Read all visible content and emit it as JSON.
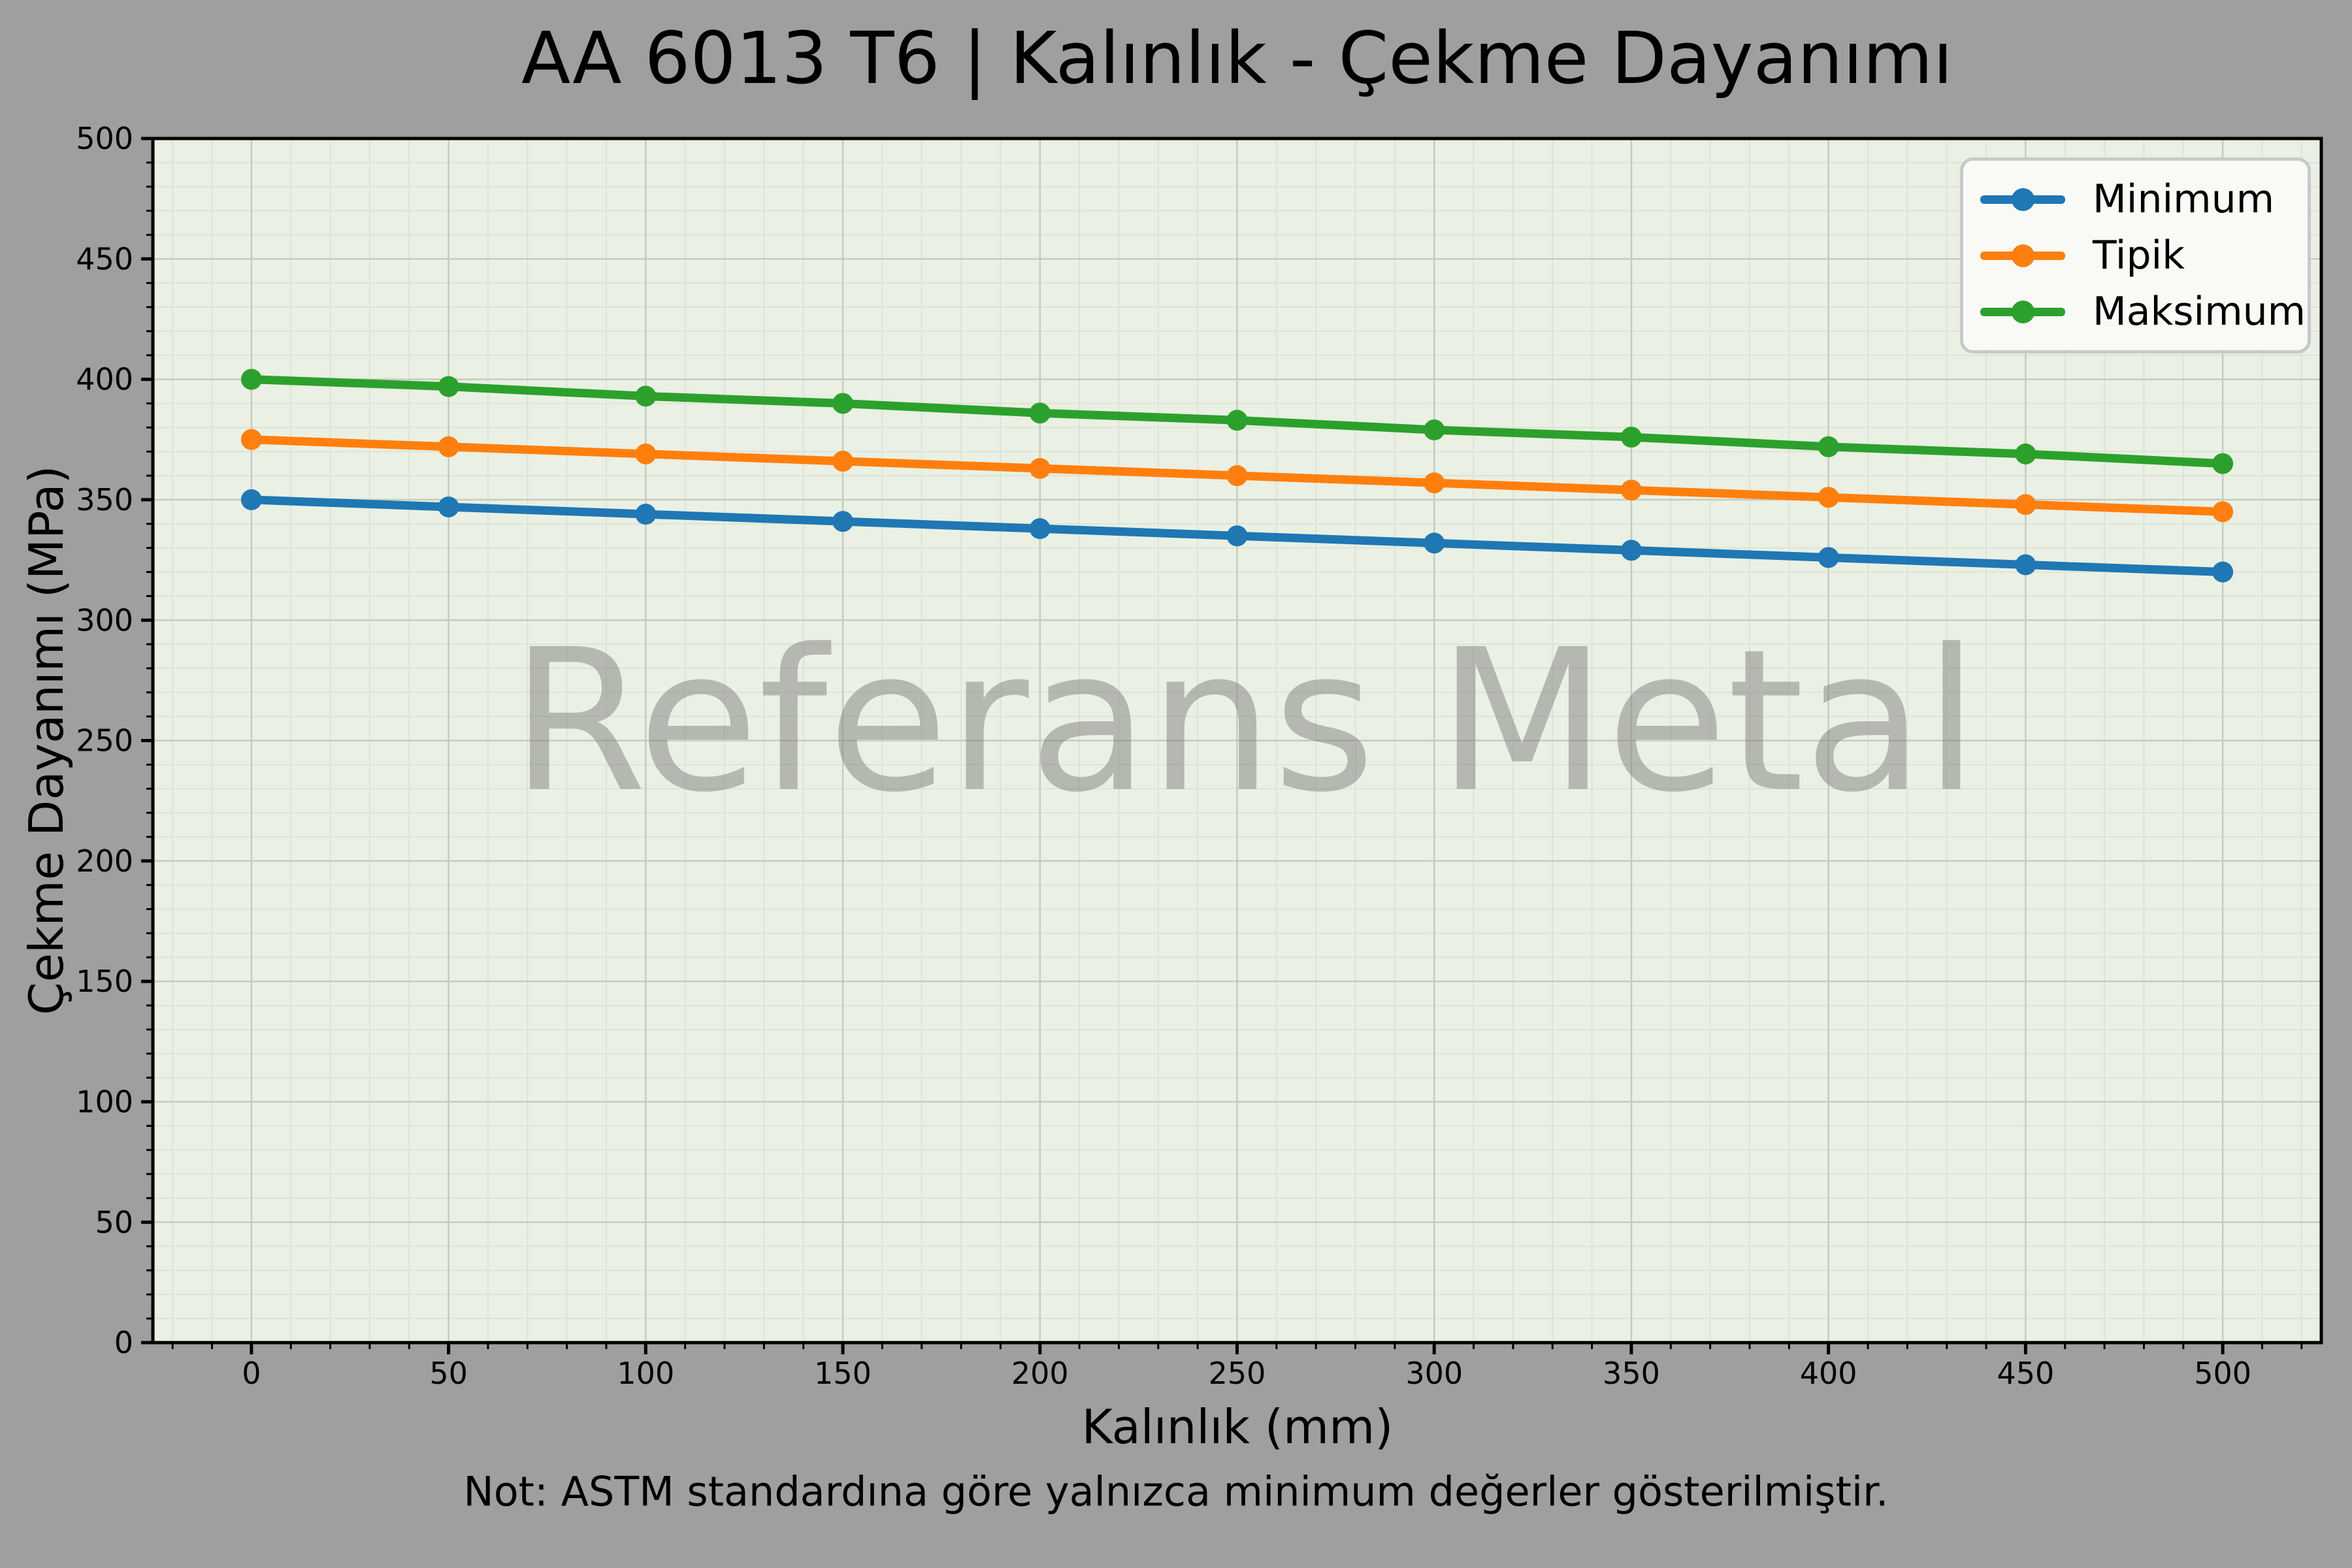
{
  "chart_data": {
    "type": "line",
    "title": "AA 6013 T6 | Kalınlık - Çekme Dayanımı",
    "xlabel": "Kalınlık (mm)",
    "ylabel": "Çekme Dayanımı (MPa)",
    "note": "Not: ASTM standardına göre yalnızca minimum değerler gösterilmiştir.",
    "watermark": "Referans Metal",
    "x": [
      0,
      50,
      100,
      150,
      200,
      250,
      300,
      350,
      400,
      450,
      500
    ],
    "series": [
      {
        "name": "Minimum",
        "color": "#1f77b4",
        "values": [
          350,
          347,
          344,
          341,
          338,
          335,
          332,
          329,
          326,
          323,
          320
        ]
      },
      {
        "name": "Tipik",
        "color": "#ff7f0e",
        "values": [
          375,
          372,
          369,
          366,
          363,
          360,
          357,
          354,
          351,
          348,
          345
        ]
      },
      {
        "name": "Maksimum",
        "color": "#2ca02c",
        "values": [
          400,
          397,
          393,
          390,
          386,
          383,
          379,
          376,
          372,
          369,
          365
        ]
      }
    ],
    "xlim": [
      -25,
      525
    ],
    "ylim": [
      0,
      500
    ],
    "x_ticks": [
      0,
      50,
      100,
      150,
      200,
      250,
      300,
      350,
      400,
      450,
      500
    ],
    "y_ticks": [
      0,
      50,
      100,
      150,
      200,
      250,
      300,
      350,
      400,
      450,
      500
    ],
    "minor_step": 10,
    "grid": true,
    "legend_position": "upper right",
    "marker": "circle",
    "colors": {
      "figure_bg": "#9f9f9f",
      "plot_bg": "#eaf0e3",
      "grid_major": "#c6cbc0",
      "grid_minor": "#dde3d6",
      "spine": "#000000",
      "text": "#000000",
      "legend_bg": "#f9faf6",
      "legend_border": "#c9c9c9",
      "watermark": "rgba(128,128,128,0.5)"
    }
  }
}
